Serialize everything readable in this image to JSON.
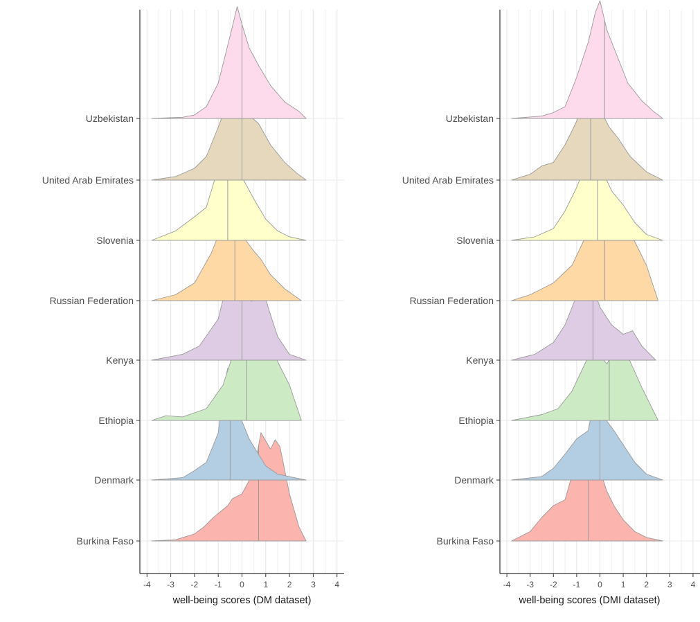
{
  "chart_data": [
    {
      "type": "ridgeline",
      "xlabel": "well-being scores (DM dataset)",
      "xlim": [
        -4.3,
        4.3
      ],
      "xticks": [
        -4,
        -3,
        -2,
        -1,
        0,
        1,
        2,
        3,
        4
      ],
      "grid": true,
      "categories": [
        "Burkina Faso",
        "Denmark",
        "Ethiopia",
        "Kenya",
        "Russian Federation",
        "Slovenia",
        "United Arab Emirates",
        "Uzbekistan"
      ],
      "series": [
        {
          "name": "Burkina Faso",
          "color": "#fbb4ae",
          "median": 0.7,
          "x": [
            -3.8,
            -2.8,
            -2.0,
            -1.6,
            -1.2,
            -0.6,
            -0.4,
            0.0,
            0.4,
            0.6,
            0.8,
            1.0,
            1.2,
            1.4,
            1.6,
            2.0,
            2.4,
            2.7
          ],
          "y": [
            0.0,
            0.01,
            0.06,
            0.12,
            0.2,
            0.3,
            0.36,
            0.4,
            0.55,
            0.7,
            0.92,
            0.85,
            0.78,
            0.86,
            0.8,
            0.4,
            0.12,
            0.0
          ]
        },
        {
          "name": "Denmark",
          "color": "#b3cde3",
          "median": -0.5,
          "x": [
            -3.8,
            -2.5,
            -2.0,
            -1.5,
            -1.0,
            -0.8,
            -0.6,
            -0.4,
            -0.2,
            0.0,
            0.3,
            0.6,
            1.0,
            1.5,
            2.2,
            2.7
          ],
          "y": [
            0.0,
            0.02,
            0.08,
            0.15,
            0.4,
            0.75,
            0.95,
            0.9,
            0.65,
            0.5,
            0.35,
            0.25,
            0.12,
            0.05,
            0.02,
            0.0
          ]
        },
        {
          "name": "Ethiopia",
          "color": "#ccebc5",
          "median": 0.2,
          "x": [
            -3.8,
            -3.2,
            -2.5,
            -1.5,
            -0.8,
            -0.4,
            -0.1,
            0.2,
            0.5,
            0.8,
            1.0,
            1.2,
            1.5,
            2.0,
            2.5
          ],
          "y": [
            0.0,
            0.04,
            0.03,
            0.1,
            0.3,
            0.55,
            0.75,
            0.72,
            0.6,
            0.64,
            0.62,
            0.6,
            0.5,
            0.3,
            0.0
          ]
        },
        {
          "name": "Kenya",
          "color": "#decbe4",
          "median": 0.0,
          "x": [
            -3.8,
            -2.5,
            -1.8,
            -1.0,
            -0.4,
            -0.3,
            -0.1,
            0.1,
            0.4,
            0.7,
            0.9,
            1.1,
            1.5,
            2.0,
            2.7
          ],
          "y": [
            0.0,
            0.05,
            0.12,
            0.35,
            0.85,
            0.9,
            0.75,
            0.62,
            0.5,
            0.55,
            0.6,
            0.45,
            0.2,
            0.05,
            0.0
          ]
        },
        {
          "name": "Russian Federation",
          "color": "#fed9a6",
          "median": -0.3,
          "x": [
            -3.8,
            -2.8,
            -2.0,
            -1.3,
            -0.9,
            -0.5,
            -0.3,
            -0.1,
            0.2,
            0.5,
            0.8,
            1.2,
            1.8,
            2.5
          ],
          "y": [
            0.0,
            0.05,
            0.15,
            0.4,
            0.6,
            0.85,
            0.9,
            0.72,
            0.5,
            0.42,
            0.35,
            0.22,
            0.1,
            0.0
          ]
        },
        {
          "name": "Slovenia",
          "color": "#ffffcc",
          "median": -0.6,
          "x": [
            -3.8,
            -2.8,
            -2.0,
            -1.5,
            -1.1,
            -0.8,
            -0.5,
            -0.2,
            0.1,
            0.5,
            1.0,
            1.5,
            2.0,
            2.7
          ],
          "y": [
            0.0,
            0.08,
            0.2,
            0.28,
            0.55,
            0.75,
            0.78,
            0.62,
            0.5,
            0.35,
            0.18,
            0.08,
            0.03,
            0.0
          ]
        },
        {
          "name": "United Arab Emirates",
          "color": "#e5d8bd",
          "median": 0.0,
          "x": [
            -3.8,
            -2.8,
            -2.0,
            -1.5,
            -1.0,
            -0.5,
            -0.2,
            0.0,
            0.3,
            0.7,
            1.2,
            1.8,
            2.3,
            2.7
          ],
          "y": [
            0.0,
            0.03,
            0.1,
            0.2,
            0.45,
            0.72,
            0.95,
            0.65,
            0.55,
            0.48,
            0.3,
            0.15,
            0.06,
            0.0
          ]
        },
        {
          "name": "Uzbekistan",
          "color": "#fddaec",
          "median": 0.0,
          "x": [
            -3.8,
            -2.5,
            -2.0,
            -1.5,
            -1.0,
            -0.5,
            -0.2,
            0.0,
            0.3,
            0.7,
            1.2,
            1.8,
            2.4,
            2.7
          ],
          "y": [
            0.0,
            0.01,
            0.03,
            0.1,
            0.3,
            0.7,
            0.95,
            0.8,
            0.6,
            0.45,
            0.28,
            0.14,
            0.06,
            0.0
          ]
        }
      ]
    },
    {
      "type": "ridgeline",
      "xlabel": "well-being scores (DMI dataset)",
      "xlim": [
        -4.3,
        4.3
      ],
      "xticks": [
        -4,
        -3,
        -2,
        -1,
        0,
        1,
        2,
        3,
        4
      ],
      "grid": true,
      "categories": [
        "Burkina Faso",
        "Denmark",
        "Ethiopia",
        "Kenya",
        "Russian Federation",
        "Slovenia",
        "United Arab Emirates",
        "Uzbekistan"
      ],
      "series": [
        {
          "name": "Burkina Faso",
          "color": "#fbb4ae",
          "median": -0.5,
          "x": [
            -3.8,
            -3.0,
            -2.5,
            -2.0,
            -1.5,
            -1.0,
            -0.8,
            -0.6,
            -0.3,
            0.0,
            0.3,
            0.6,
            1.0,
            1.5,
            2.0,
            2.7
          ],
          "y": [
            0.0,
            0.08,
            0.2,
            0.3,
            0.35,
            0.7,
            0.8,
            0.85,
            0.78,
            0.6,
            0.42,
            0.3,
            0.18,
            0.08,
            0.03,
            0.0
          ]
        },
        {
          "name": "Denmark",
          "color": "#b3cde3",
          "median": 0.0,
          "x": [
            -3.8,
            -2.5,
            -2.0,
            -1.5,
            -1.0,
            -0.5,
            -0.2,
            0.0,
            0.3,
            0.6,
            1.0,
            1.5,
            2.0,
            2.7
          ],
          "y": [
            0.0,
            0.03,
            0.1,
            0.22,
            0.35,
            0.42,
            0.75,
            0.6,
            0.5,
            0.42,
            0.3,
            0.15,
            0.05,
            0.0
          ]
        },
        {
          "name": "Ethiopia",
          "color": "#ccebc5",
          "median": 0.4,
          "x": [
            -3.8,
            -2.5,
            -1.8,
            -1.2,
            -0.6,
            -0.2,
            0.0,
            0.3,
            0.6,
            0.8,
            1.0,
            1.3,
            1.8,
            2.5
          ],
          "y": [
            0.0,
            0.05,
            0.1,
            0.25,
            0.5,
            0.62,
            0.55,
            0.48,
            0.6,
            0.65,
            0.6,
            0.5,
            0.28,
            0.0
          ]
        },
        {
          "name": "Kenya",
          "color": "#decbe4",
          "median": -0.3,
          "x": [
            -3.8,
            -2.8,
            -2.0,
            -1.5,
            -1.0,
            -0.6,
            -0.3,
            0.0,
            0.5,
            1.0,
            1.4,
            1.8,
            2.4
          ],
          "y": [
            0.0,
            0.05,
            0.15,
            0.3,
            0.55,
            0.72,
            0.62,
            0.45,
            0.3,
            0.22,
            0.25,
            0.12,
            0.0
          ]
        },
        {
          "name": "Russian Federation",
          "color": "#fed9a6",
          "median": 0.2,
          "x": [
            -3.8,
            -3.0,
            -2.0,
            -1.2,
            -0.6,
            -0.3,
            -0.1,
            0.2,
            0.5,
            0.8,
            1.2,
            1.5,
            2.0,
            2.5
          ],
          "y": [
            0.0,
            0.05,
            0.15,
            0.3,
            0.55,
            0.7,
            0.65,
            0.55,
            0.58,
            0.62,
            0.6,
            0.5,
            0.3,
            0.0
          ]
        },
        {
          "name": "Slovenia",
          "color": "#ffffcc",
          "median": -0.1,
          "x": [
            -3.8,
            -2.8,
            -2.0,
            -1.5,
            -1.0,
            -0.5,
            -0.3,
            -0.1,
            0.2,
            0.5,
            1.0,
            1.5,
            2.0,
            2.7
          ],
          "y": [
            0.0,
            0.03,
            0.1,
            0.25,
            0.45,
            0.7,
            0.95,
            0.8,
            0.55,
            0.42,
            0.3,
            0.15,
            0.05,
            0.0
          ]
        },
        {
          "name": "United Arab Emirates",
          "color": "#e5d8bd",
          "median": -0.4,
          "x": [
            -3.8,
            -3.0,
            -2.5,
            -2.0,
            -1.5,
            -1.0,
            -0.6,
            -0.3,
            0.0,
            0.4,
            0.8,
            1.3,
            2.0,
            2.7
          ],
          "y": [
            0.0,
            0.05,
            0.12,
            0.15,
            0.3,
            0.5,
            0.8,
            0.85,
            0.6,
            0.45,
            0.35,
            0.2,
            0.07,
            0.0
          ]
        },
        {
          "name": "Uzbekistan",
          "color": "#fddaec",
          "median": 0.2,
          "x": [
            -3.8,
            -2.5,
            -2.0,
            -1.5,
            -1.0,
            -0.5,
            -0.2,
            0.0,
            0.3,
            0.7,
            1.2,
            1.8,
            2.3,
            2.7
          ],
          "y": [
            0.0,
            0.02,
            0.05,
            0.1,
            0.35,
            0.65,
            0.9,
            1.0,
            0.75,
            0.55,
            0.3,
            0.15,
            0.06,
            0.0
          ]
        }
      ]
    }
  ]
}
